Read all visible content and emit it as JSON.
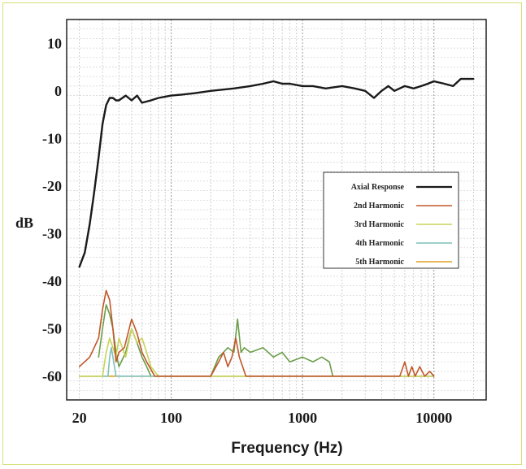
{
  "chart_data": {
    "type": "line",
    "xlabel": "Frequency (Hz)",
    "ylabel": "dB",
    "xscale": "log",
    "xlim": [
      16,
      25000
    ],
    "ylim": [
      -65,
      15
    ],
    "x_ticks": [
      {
        "v": 20,
        "label": "20"
      },
      {
        "v": 100,
        "label": "100"
      },
      {
        "v": 1000,
        "label": "1000"
      },
      {
        "v": 10000,
        "label": "10000"
      }
    ],
    "y_ticks": [
      {
        "v": 10,
        "label": "10"
      },
      {
        "v": 0,
        "label": "0"
      },
      {
        "v": -10,
        "label": "-10"
      },
      {
        "v": -20,
        "label": "-20"
      },
      {
        "v": -30,
        "label": "-30"
      },
      {
        "v": -40,
        "label": "-40"
      },
      {
        "v": -50,
        "label": "-50"
      },
      {
        "v": -60,
        "label": "-60"
      }
    ],
    "grid": true,
    "legend_position": "right-center",
    "series": [
      {
        "name": "Axial Response",
        "color": "#1a1a1a",
        "x": [
          20,
          22,
          24,
          26,
          28,
          30,
          32,
          34,
          36,
          38,
          40,
          45,
          50,
          55,
          60,
          70,
          80,
          100,
          120,
          150,
          200,
          300,
          400,
          500,
          600,
          700,
          800,
          1000,
          1200,
          1500,
          2000,
          2500,
          3000,
          3500,
          4000,
          4500,
          5000,
          6000,
          7000,
          8000,
          9000,
          10000,
          12000,
          14000,
          16000,
          18000,
          20000
        ],
        "y": [
          -37,
          -34,
          -28,
          -21,
          -14,
          -7,
          -3,
          -1.5,
          -1.5,
          -2,
          -2,
          -1,
          -2,
          -1,
          -2.5,
          -2,
          -1.5,
          -1,
          -0.8,
          -0.5,
          0,
          0.5,
          1,
          1.5,
          2,
          1.5,
          1.5,
          1,
          1,
          0.5,
          1,
          0.5,
          0,
          -1.5,
          0,
          1,
          0,
          1,
          0.5,
          1,
          1.5,
          2,
          1.5,
          1,
          2.5,
          2.5,
          2.5
        ]
      },
      {
        "name": "2nd Harmonic",
        "color": "#c0582a",
        "x": [
          20,
          24,
          28,
          30,
          32,
          34,
          36,
          38,
          40,
          44,
          50,
          55,
          60,
          65,
          75,
          90,
          200,
          230,
          250,
          270,
          290,
          310,
          330,
          350,
          370,
          2500,
          5500,
          6000,
          6400,
          6800,
          7200,
          7800,
          8500,
          9300,
          10000
        ],
        "y": [
          -58,
          -56,
          -52,
          -46,
          -42,
          -44,
          -50,
          -57,
          -55,
          -54,
          -48,
          -51,
          -55,
          -57,
          -60,
          -60,
          -60,
          -57,
          -55,
          -58,
          -56,
          -52,
          -56,
          -58,
          -60,
          -60,
          -60,
          -57,
          -60,
          -58,
          -60,
          -58,
          -60,
          -59,
          -60
        ]
      },
      {
        "name": "3rd Harmonic",
        "color": "#c8d45a",
        "x": [
          20,
          30,
          32,
          34,
          36,
          38,
          40,
          45,
          50,
          55,
          60,
          65,
          70,
          80,
          10000
        ],
        "y": [
          -60,
          -60,
          -55,
          -52,
          -54,
          -56,
          -52,
          -56,
          -50,
          -53,
          -52,
          -55,
          -58,
          -60,
          -60
        ]
      },
      {
        "name": "4th Harmonic",
        "color": "#7fc0b8",
        "x": [
          20,
          33,
          34,
          35,
          36,
          37,
          38,
          40,
          10000
        ],
        "y": [
          -60,
          -60,
          -56,
          -54,
          -56,
          -58,
          -60,
          -60,
          -60
        ]
      },
      {
        "name": "5th Harmonic",
        "color": "#e0a020",
        "x": [
          20,
          10000
        ],
        "y": [
          -60,
          -60
        ]
      },
      {
        "name": "",
        "color": "#6a9e4a",
        "x": [
          28,
          30,
          32,
          34,
          36,
          38,
          40,
          45,
          50,
          55,
          60,
          65,
          70,
          80,
          90,
          200,
          230,
          250,
          270,
          300,
          320,
          340,
          360,
          400,
          500,
          600,
          700,
          800,
          1000,
          1200,
          1400,
          1600,
          1700
        ],
        "y": [
          -56,
          -50,
          -45,
          -47,
          -50,
          -55,
          -58,
          -55,
          -50,
          -53,
          -56,
          -58,
          -60,
          -60,
          -60,
          -60,
          -56,
          -55,
          -54,
          -55,
          -48,
          -55,
          -54,
          -55,
          -54,
          -56,
          -55,
          -57,
          -56,
          -57,
          -56,
          -57,
          -60
        ]
      }
    ]
  }
}
